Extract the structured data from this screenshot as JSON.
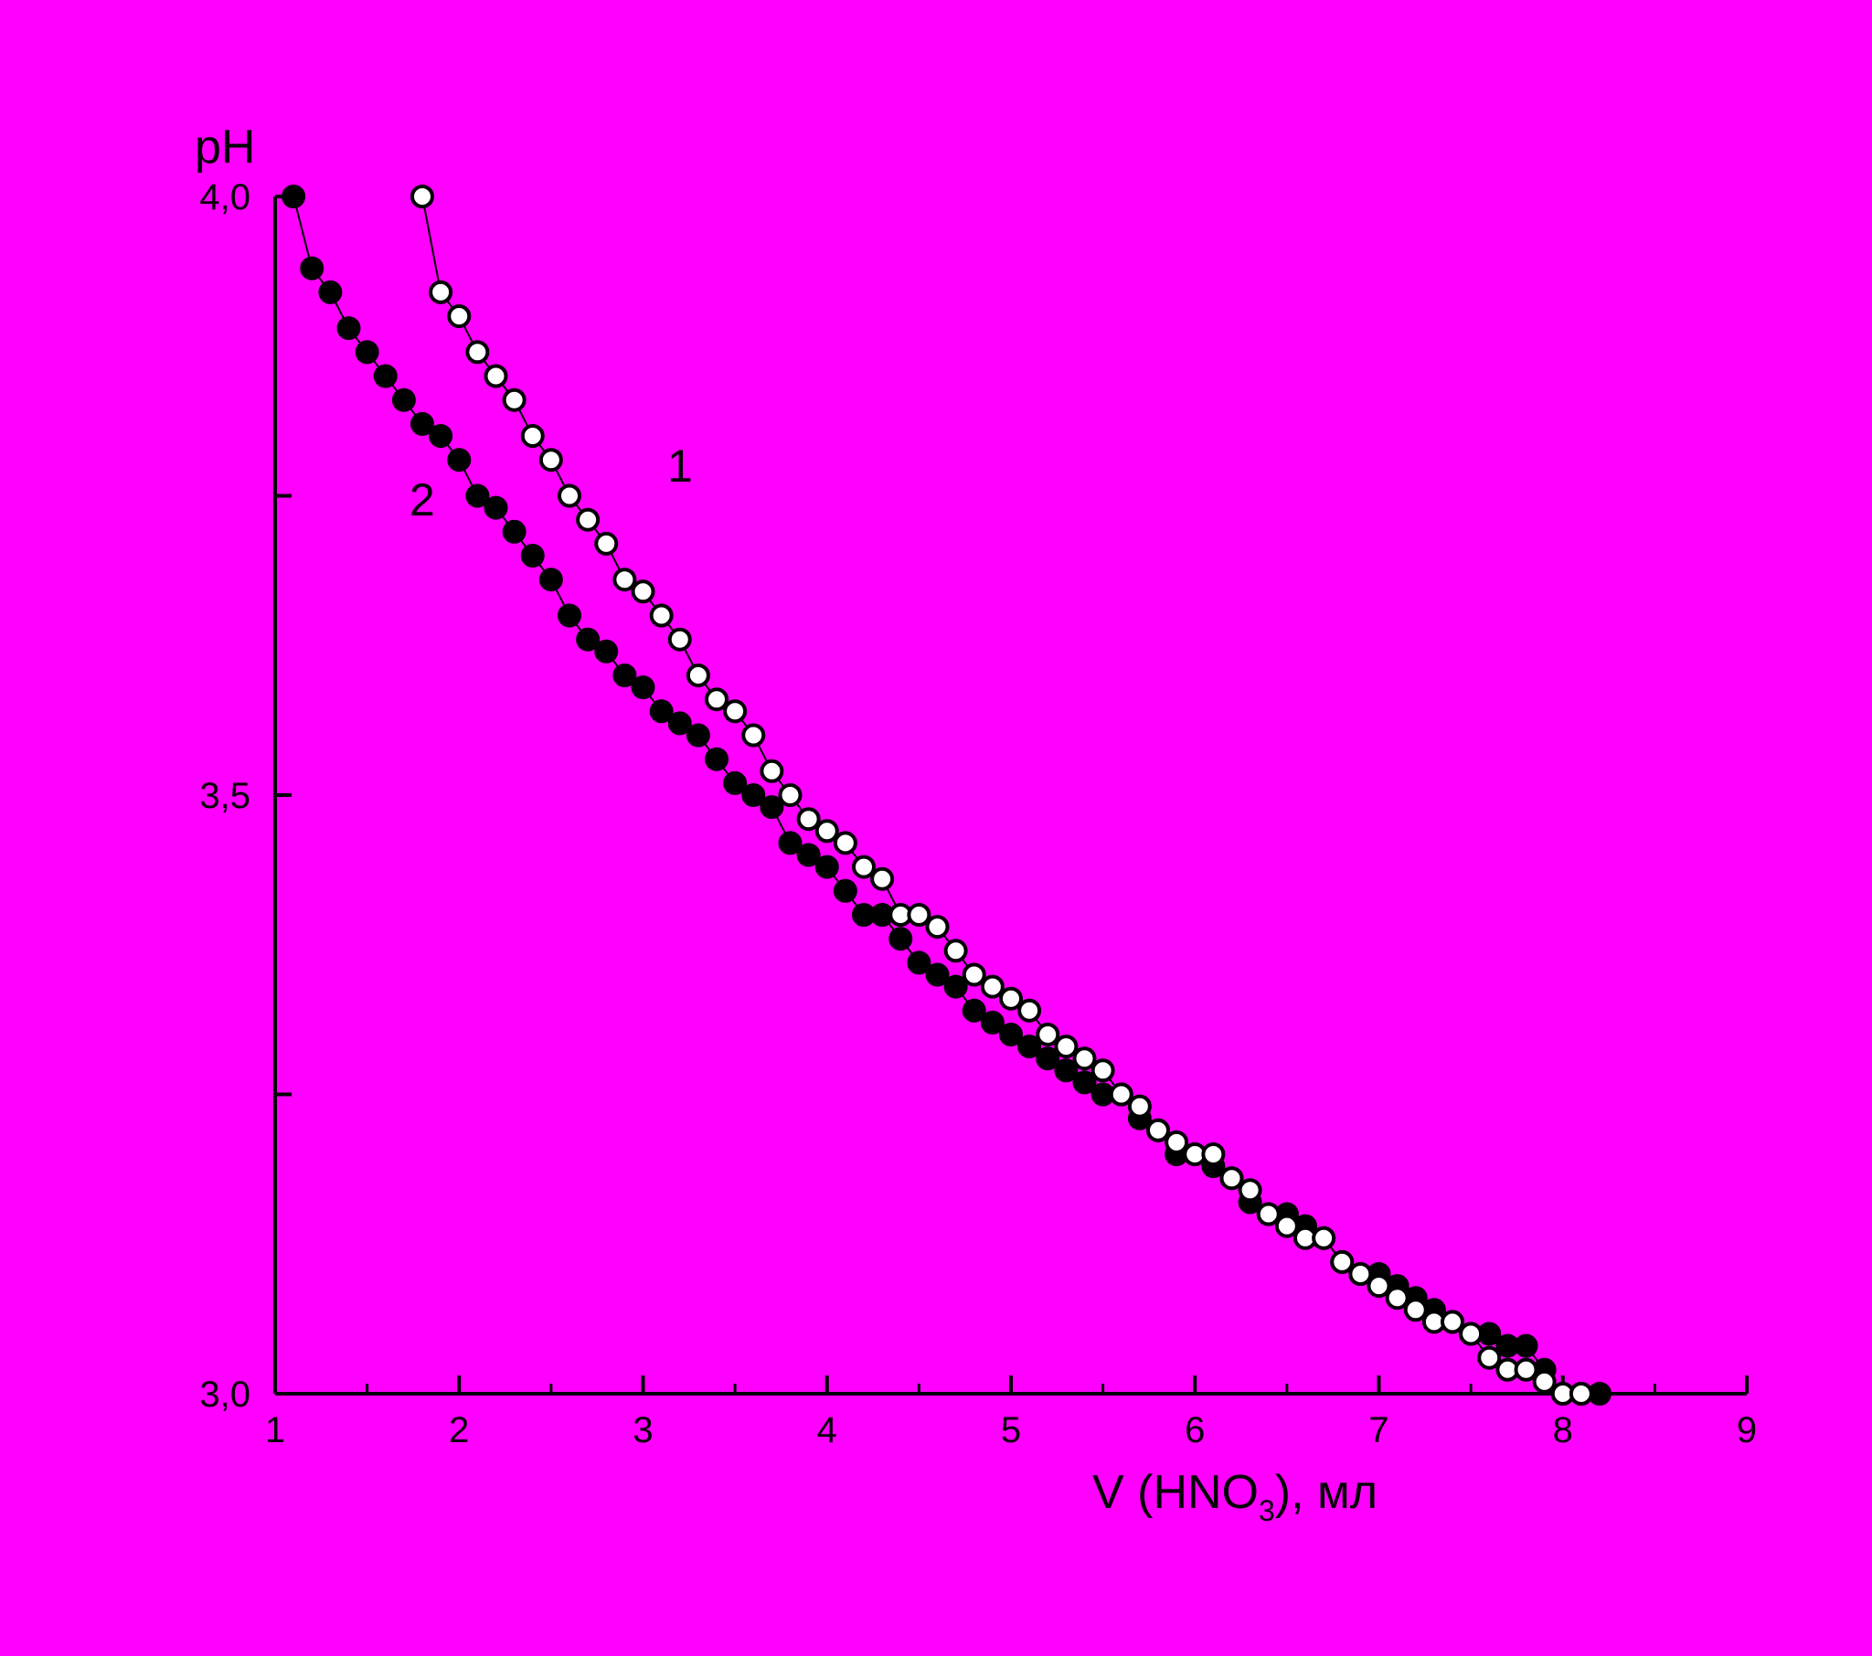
{
  "chart_data": {
    "type": "scatter",
    "background": "#FF00FF",
    "xlabel_main": "V (HNO",
    "xlabel_sub": "3",
    "xlabel_tail": "), мл",
    "ylabel": "pH",
    "xlim": [
      1,
      9
    ],
    "ylim": [
      3.0,
      4.0
    ],
    "x_ticks": [
      1,
      2,
      3,
      4,
      5,
      6,
      7,
      8,
      9
    ],
    "x_tick_labels": [
      "1",
      "2",
      "3",
      "4",
      "5",
      "6",
      "7",
      "8",
      "9"
    ],
    "y_ticks": [
      3.0,
      3.25,
      3.5,
      3.75,
      4.0
    ],
    "y_tick_labels": [
      "3,0",
      "",
      "3,5",
      "",
      "4,0"
    ],
    "grid": false,
    "series": [
      {
        "name": "1",
        "marker": "open-circle",
        "color": "#000000",
        "fill": "#FFFFFF",
        "x": [
          1.8,
          1.9,
          2.0,
          2.1,
          2.2,
          2.3,
          2.4,
          2.5,
          2.6,
          2.7,
          2.8,
          2.9,
          3.0,
          3.1,
          3.2,
          3.3,
          3.4,
          3.5,
          3.6,
          3.7,
          3.8,
          3.9,
          4.0,
          4.1,
          4.2,
          4.3,
          4.4,
          4.5,
          4.6,
          4.7,
          4.8,
          4.9,
          5.0,
          5.1,
          5.2,
          5.3,
          5.4,
          5.5,
          5.6,
          5.7,
          5.8,
          5.9,
          6.0,
          6.1,
          6.2,
          6.3,
          6.4,
          6.5,
          6.6,
          6.7,
          6.8,
          6.9,
          7.0,
          7.1,
          7.2,
          7.3,
          7.4,
          7.5,
          7.6,
          7.7,
          7.8,
          7.9,
          8.0,
          8.1
        ],
        "y": [
          4.0,
          3.92,
          3.9,
          3.87,
          3.85,
          3.83,
          3.8,
          3.78,
          3.75,
          3.73,
          3.71,
          3.68,
          3.67,
          3.65,
          3.63,
          3.6,
          3.58,
          3.57,
          3.55,
          3.52,
          3.5,
          3.48,
          3.47,
          3.46,
          3.44,
          3.43,
          3.4,
          3.4,
          3.39,
          3.37,
          3.35,
          3.34,
          3.33,
          3.32,
          3.3,
          3.29,
          3.28,
          3.27,
          3.25,
          3.24,
          3.22,
          3.21,
          3.2,
          3.2,
          3.18,
          3.17,
          3.15,
          3.14,
          3.13,
          3.13,
          3.11,
          3.1,
          3.09,
          3.08,
          3.07,
          3.06,
          3.06,
          3.05,
          3.03,
          3.02,
          3.02,
          3.01,
          3.0,
          3.0
        ]
      },
      {
        "name": "2",
        "marker": "filled-circle",
        "color": "#000000",
        "fill": "#000000",
        "x": [
          1.1,
          1.2,
          1.3,
          1.4,
          1.5,
          1.6,
          1.7,
          1.8,
          1.9,
          2.0,
          2.1,
          2.2,
          2.3,
          2.4,
          2.5,
          2.6,
          2.7,
          2.8,
          2.9,
          3.0,
          3.1,
          3.2,
          3.3,
          3.4,
          3.5,
          3.6,
          3.7,
          3.8,
          3.9,
          4.0,
          4.1,
          4.2,
          4.3,
          4.4,
          4.5,
          4.6,
          4.7,
          4.8,
          4.9,
          5.0,
          5.1,
          5.2,
          5.3,
          5.4,
          5.5,
          5.6,
          5.7,
          5.8,
          5.9,
          6.0,
          6.1,
          6.2,
          6.3,
          6.4,
          6.5,
          6.6,
          6.7,
          6.8,
          6.9,
          7.0,
          7.1,
          7.2,
          7.3,
          7.4,
          7.5,
          7.6,
          7.7,
          7.8,
          7.9,
          8.0,
          8.1,
          8.2
        ],
        "y": [
          4.0,
          3.94,
          3.92,
          3.89,
          3.87,
          3.85,
          3.83,
          3.81,
          3.8,
          3.78,
          3.75,
          3.74,
          3.72,
          3.7,
          3.68,
          3.65,
          3.63,
          3.62,
          3.6,
          3.59,
          3.57,
          3.56,
          3.55,
          3.53,
          3.51,
          3.5,
          3.49,
          3.46,
          3.45,
          3.44,
          3.42,
          3.4,
          3.4,
          3.38,
          3.36,
          3.35,
          3.34,
          3.32,
          3.31,
          3.3,
          3.29,
          3.28,
          3.27,
          3.26,
          3.25,
          3.25,
          3.23,
          3.22,
          3.2,
          3.2,
          3.19,
          3.18,
          3.16,
          3.15,
          3.15,
          3.14,
          3.13,
          3.11,
          3.1,
          3.1,
          3.09,
          3.08,
          3.07,
          3.06,
          3.05,
          3.05,
          3.04,
          3.04,
          3.02,
          3.0,
          3.0,
          3.0
        ]
      }
    ]
  }
}
